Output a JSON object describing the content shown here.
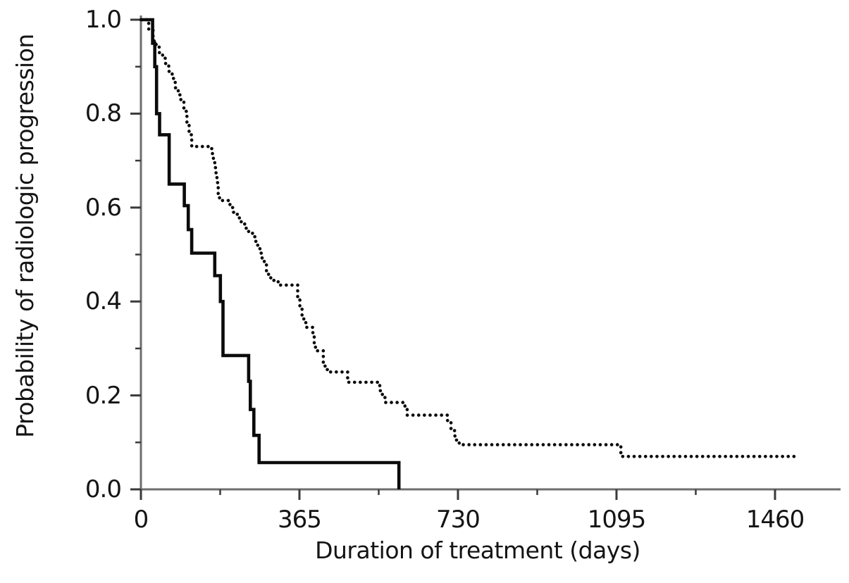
{
  "figure": {
    "kind": "kaplan-meier-survival-plot",
    "background": "#ffffff"
  },
  "colors": {
    "curve": "#0b0b0b",
    "axis": "#6e6e6e",
    "tick": "#3a3a3a",
    "text": "#141414",
    "background": "#ffffff"
  },
  "chart_data": {
    "type": "line",
    "subtype": "step-survival",
    "title": "",
    "xlabel": "Duration of treatment (days)",
    "ylabel": "Probability of radiologic progression",
    "xlim": [
      0,
      1610
    ],
    "ylim": [
      0.0,
      1.0
    ],
    "grid": false,
    "legend": null,
    "x_ticks": [
      0,
      365,
      730,
      1095,
      1460
    ],
    "x_tick_labels": [
      "0",
      "365",
      "730",
      "1095",
      "1460"
    ],
    "x_minor_ticks": [
      182.5,
      547.5,
      912.5,
      1277.5
    ],
    "y_ticks": [
      1.0,
      0.8,
      0.6,
      0.4,
      0.2,
      0.0
    ],
    "y_tick_labels": [
      "1.0",
      "0.8",
      "0.6",
      "0.4",
      "0.2",
      "0.0"
    ],
    "y_minor_ticks": [
      0.9,
      0.7,
      0.5,
      0.3,
      0.1
    ],
    "series": [
      {
        "name": "dotted-group",
        "style": "dotted",
        "color": "#0b0b0b",
        "end_day": 1515,
        "points": [
          [
            0,
            1.0
          ],
          [
            18,
            0.98
          ],
          [
            28,
            0.955
          ],
          [
            35,
            0.945
          ],
          [
            42,
            0.93
          ],
          [
            50,
            0.918
          ],
          [
            57,
            0.905
          ],
          [
            64,
            0.89
          ],
          [
            72,
            0.875
          ],
          [
            79,
            0.855
          ],
          [
            86,
            0.84
          ],
          [
            92,
            0.825
          ],
          [
            99,
            0.805
          ],
          [
            106,
            0.78
          ],
          [
            111,
            0.755
          ],
          [
            117,
            0.73
          ],
          [
            163,
            0.715
          ],
          [
            167,
            0.7
          ],
          [
            170,
            0.685
          ],
          [
            173,
            0.668
          ],
          [
            175,
            0.653
          ],
          [
            178,
            0.625
          ],
          [
            181,
            0.615
          ],
          [
            205,
            0.6
          ],
          [
            213,
            0.59
          ],
          [
            222,
            0.578
          ],
          [
            231,
            0.568
          ],
          [
            239,
            0.556
          ],
          [
            248,
            0.548
          ],
          [
            257,
            0.538
          ],
          [
            263,
            0.528
          ],
          [
            269,
            0.518
          ],
          [
            274,
            0.503
          ],
          [
            279,
            0.49
          ],
          [
            284,
            0.478
          ],
          [
            289,
            0.465
          ],
          [
            294,
            0.455
          ],
          [
            299,
            0.445
          ],
          [
            316,
            0.435
          ],
          [
            361,
            0.41
          ],
          [
            366,
            0.39
          ],
          [
            371,
            0.37
          ],
          [
            375,
            0.355
          ],
          [
            380,
            0.345
          ],
          [
            396,
            0.33
          ],
          [
            399,
            0.31
          ],
          [
            402,
            0.295
          ],
          [
            420,
            0.27
          ],
          [
            424,
            0.255
          ],
          [
            430,
            0.25
          ],
          [
            476,
            0.228
          ],
          [
            550,
            0.21
          ],
          [
            556,
            0.196
          ],
          [
            562,
            0.185
          ],
          [
            608,
            0.17
          ],
          [
            613,
            0.158
          ],
          [
            706,
            0.145
          ],
          [
            714,
            0.125
          ],
          [
            723,
            0.105
          ],
          [
            733,
            0.095
          ],
          [
            1105,
            0.07
          ]
        ]
      },
      {
        "name": "solid-group",
        "style": "solid",
        "color": "#0b0b0b",
        "end_day": 594,
        "points": [
          [
            0,
            1.0
          ],
          [
            27,
            0.95
          ],
          [
            32,
            0.9
          ],
          [
            36,
            0.8
          ],
          [
            43,
            0.755
          ],
          [
            65,
            0.65
          ],
          [
            100,
            0.604
          ],
          [
            109,
            0.553
          ],
          [
            117,
            0.503
          ],
          [
            170,
            0.455
          ],
          [
            183,
            0.4
          ],
          [
            189,
            0.285
          ],
          [
            248,
            0.23
          ],
          [
            252,
            0.17
          ],
          [
            260,
            0.115
          ],
          [
            272,
            0.057
          ],
          [
            594,
            0.0
          ]
        ]
      }
    ]
  }
}
